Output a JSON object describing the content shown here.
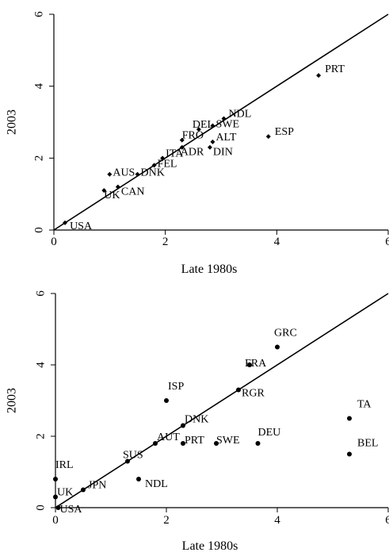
{
  "chart_data": [
    {
      "type": "scatter",
      "xlabel": "Late 1980s",
      "ylabel": "2003",
      "xlim": [
        0,
        6
      ],
      "ylim": [
        0,
        6
      ],
      "xticks": [
        "0",
        "2",
        "4",
        "6"
      ],
      "yticks": [
        "0",
        "2",
        "4",
        "6"
      ],
      "reference_line": "y = x",
      "points": [
        {
          "label": "USA",
          "x": 0.2,
          "y": 0.2
        },
        {
          "label": "UK",
          "x": 0.9,
          "y": 1.1
        },
        {
          "label": "AUS",
          "x": 1.0,
          "y": 1.55
        },
        {
          "label": "CAN",
          "x": 1.15,
          "y": 1.2
        },
        {
          "label": "DNK",
          "x": 1.5,
          "y": 1.55
        },
        {
          "label": "FEL",
          "x": 1.8,
          "y": 1.8
        },
        {
          "label": "ITA",
          "x": 1.95,
          "y": 2.0
        },
        {
          "label": "FRO",
          "x": 2.3,
          "y": 2.5
        },
        {
          "label": "ADR",
          "x": 2.3,
          "y": 2.3
        },
        {
          "label": "DEL",
          "x": 2.6,
          "y": 2.8
        },
        {
          "label": "SWE",
          "x": 2.85,
          "y": 2.9
        },
        {
          "label": "NDL",
          "x": 3.05,
          "y": 3.1
        },
        {
          "label": "ALT",
          "x": 2.85,
          "y": 2.45
        },
        {
          "label": "DIN",
          "x": 2.8,
          "y": 2.3
        },
        {
          "label": "ESP",
          "x": 3.85,
          "y": 2.6
        },
        {
          "label": "PRT",
          "x": 4.75,
          "y": 4.3
        }
      ]
    },
    {
      "type": "scatter",
      "xlabel": "Late 1980s",
      "ylabel": "2003",
      "xlim": [
        0,
        6
      ],
      "ylim": [
        0,
        6
      ],
      "xticks": [
        "0",
        "2",
        "4",
        "6"
      ],
      "yticks": [
        "0",
        "2",
        "4",
        "6"
      ],
      "reference_line": "y = x",
      "points": [
        {
          "label": "USA",
          "x": 0.05,
          "y": 0.0
        },
        {
          "label": "UK",
          "x": 0.0,
          "y": 0.3
        },
        {
          "label": "IRL",
          "x": 0.0,
          "y": 0.8
        },
        {
          "label": "JPN",
          "x": 0.5,
          "y": 0.5
        },
        {
          "label": "NDL",
          "x": 1.5,
          "y": 0.8
        },
        {
          "label": "SUS",
          "x": 1.3,
          "y": 1.3
        },
        {
          "label": "AUT",
          "x": 1.8,
          "y": 1.8
        },
        {
          "label": "PRT",
          "x": 2.3,
          "y": 1.8
        },
        {
          "label": "DNK",
          "x": 2.3,
          "y": 2.3
        },
        {
          "label": "ISP",
          "x": 2.0,
          "y": 3.0
        },
        {
          "label": "SWE",
          "x": 2.9,
          "y": 1.8
        },
        {
          "label": "DEU",
          "x": 3.65,
          "y": 1.8
        },
        {
          "label": "RGR",
          "x": 3.3,
          "y": 3.3
        },
        {
          "label": "FRA",
          "x": 3.5,
          "y": 4.0
        },
        {
          "label": "GRC",
          "x": 4.0,
          "y": 4.5
        },
        {
          "label": "TA",
          "x": 5.3,
          "y": 2.5
        },
        {
          "label": "BEL",
          "x": 5.3,
          "y": 1.5
        }
      ]
    }
  ]
}
